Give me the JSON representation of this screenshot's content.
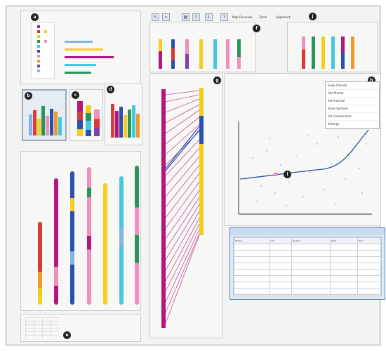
{
  "colors": {
    "magenta": "#b2167f",
    "blue": "#2b50b0",
    "red": "#d83a3a",
    "yellow": "#f2cf1f",
    "cyan": "#46c6df",
    "green": "#27955a",
    "pink": "#ee8fbe",
    "orange": "#f2972a",
    "purple": "#7f3fae",
    "lightblue": "#7fb6e6"
  },
  "icons": [
    "pointer-icon",
    "zoom-icon",
    "layout-icon",
    "export-icon",
    "import-icon",
    "help-icon"
  ],
  "markers": {
    "m1": "a",
    "m2": "b",
    "m3": "c",
    "m4": "d",
    "m5": "e",
    "m6": "f",
    "m7": "g",
    "m8": "h",
    "m9": "i",
    "m10": "j"
  },
  "toolbar": {
    "labels": [
      "Map Overview",
      "Zoom",
      "Alignment"
    ]
  },
  "context_menu": {
    "items": [
      "Swap Interval",
      "Add Marker",
      "Add Interval",
      "Show Syntenic",
      "Set Comparative",
      "Settings"
    ]
  },
  "table_window": {
    "columns": [
      "Marker",
      "Chr",
      "Position",
      "Start",
      "End"
    ],
    "rows": [
      [
        "",
        "",
        "",
        "",
        ""
      ],
      [
        "",
        "",
        "",
        "",
        ""
      ],
      [
        "",
        "",
        "",
        "",
        ""
      ],
      [
        "",
        "",
        "",
        "",
        ""
      ],
      [
        "",
        "",
        "",
        "",
        ""
      ],
      [
        "",
        "",
        "",
        "",
        ""
      ],
      [
        "",
        "",
        "",
        "",
        ""
      ],
      [
        "",
        "",
        "",
        "",
        ""
      ]
    ]
  }
}
